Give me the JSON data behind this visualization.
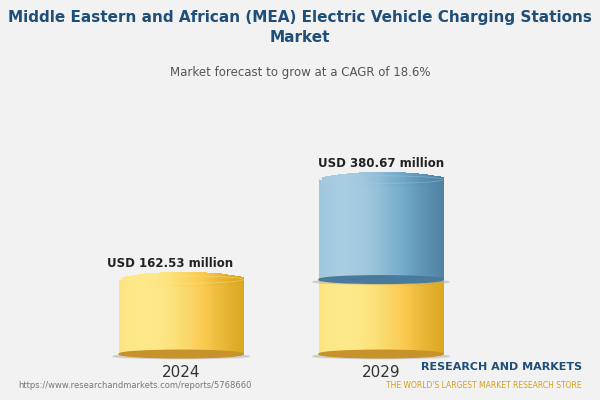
{
  "title": "Middle Eastern and African (MEA) Electric Vehicle Charging Stations\nMarket",
  "subtitle": "Market forecast to grow at a CAGR of 18.6%",
  "years": [
    "2024",
    "2029"
  ],
  "values": [
    162.53,
    380.67
  ],
  "labels": [
    "USD 162.53 million",
    "USD 380.67 million"
  ],
  "color_yellow_light": "#FDE98A",
  "color_yellow_mid": "#F9C84E",
  "color_yellow_dark": "#D4A017",
  "color_yellow_shadow": "#C8922A",
  "color_blue_light": "#A8CCE0",
  "color_blue_mid": "#6FA8C8",
  "color_blue_dark": "#4A7A9B",
  "background_color": "#F2F2F2",
  "title_color": "#1F4E79",
  "subtitle_color": "#555555",
  "watermark": "https://www.researchandmarkets.com/reports/5768660",
  "brand_line1": "RESEARCH AND MARKETS",
  "brand_line2": "THE WORLD'S LARGEST MARKET RESEARCH STORE",
  "brand_color_main": "#1F4E79",
  "brand_color_accent": "#D4A017"
}
